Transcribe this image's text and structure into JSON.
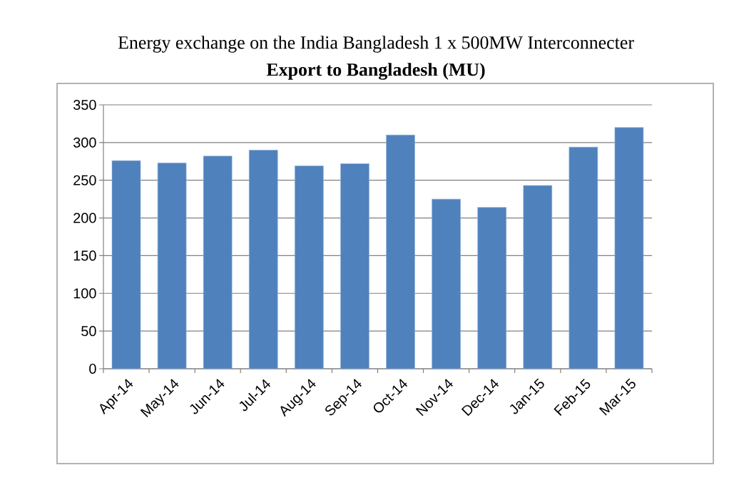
{
  "chart_data": {
    "type": "bar",
    "title": "Energy exchange on the India Bangladesh 1 x 500MW Interconnecter",
    "subtitle": "**Export to Bangladesh (MU)**",
    "categories": [
      "Apr-14",
      "May-14",
      "Jun-14",
      "Jul-14",
      "Aug-14",
      "Sep-14",
      "Oct-14",
      "Nov-14",
      "Dec-14",
      "Jan-15",
      "Feb-15",
      "Mar-15"
    ],
    "values": [
      276,
      273,
      282,
      290,
      269,
      272,
      310,
      225,
      214,
      243,
      294,
      320
    ],
    "color": "#4f81bd",
    "ylim": [
      0,
      350
    ],
    "yticks": [
      0,
      50,
      100,
      150,
      200,
      250,
      300,
      350
    ],
    "grid": "y"
  }
}
